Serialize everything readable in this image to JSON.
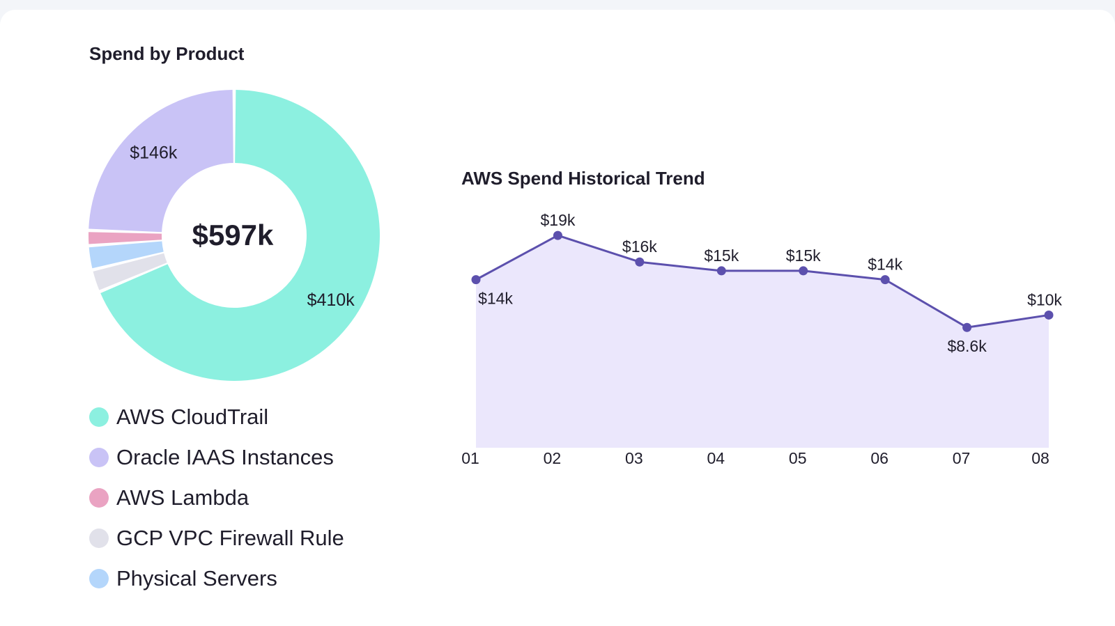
{
  "chart_data": [
    {
      "type": "pie",
      "title": "Spend by Product",
      "center_label": "$597k",
      "total": 597,
      "unit": "$k",
      "legend_placement": "bottom",
      "slices": [
        {
          "name": "AWS CloudTrail",
          "value": 410,
          "label": "$410k",
          "color": "#8cf0e0"
        },
        {
          "name": "Oracle IAAS Instances",
          "value": 146,
          "label": "$146k",
          "color": "#c9c3f6"
        },
        {
          "name": "AWS Lambda",
          "value": 10,
          "label": "",
          "color": "#eaa3c2"
        },
        {
          "name": "GCP VPC Firewall Rule",
          "value": 15,
          "label": "",
          "color": "#e1e1ea"
        },
        {
          "name": "Physical Servers",
          "value": 16,
          "label": "",
          "color": "#b4d6fb"
        }
      ],
      "draw_order": [
        0,
        3,
        4,
        2,
        1
      ]
    },
    {
      "type": "area",
      "title": "AWS Spend Historical Trend",
      "categories": [
        "01",
        "02",
        "03",
        "04",
        "05",
        "06",
        "07",
        "08"
      ],
      "values": [
        14,
        19,
        16,
        15,
        15,
        14,
        8.6,
        10
      ],
      "data_labels": [
        "$14k",
        "$19k",
        "$16k",
        "$15k",
        "$15k",
        "$14k",
        "$8.6k",
        "$10k"
      ],
      "label_position": [
        "below",
        "above",
        "above",
        "above",
        "above",
        "above",
        "below",
        "above"
      ],
      "ylim": [
        -5,
        22
      ],
      "unit": "$k",
      "grid": false,
      "line_color": "#5c50ad",
      "fill_color": "#ebe7fc"
    }
  ]
}
